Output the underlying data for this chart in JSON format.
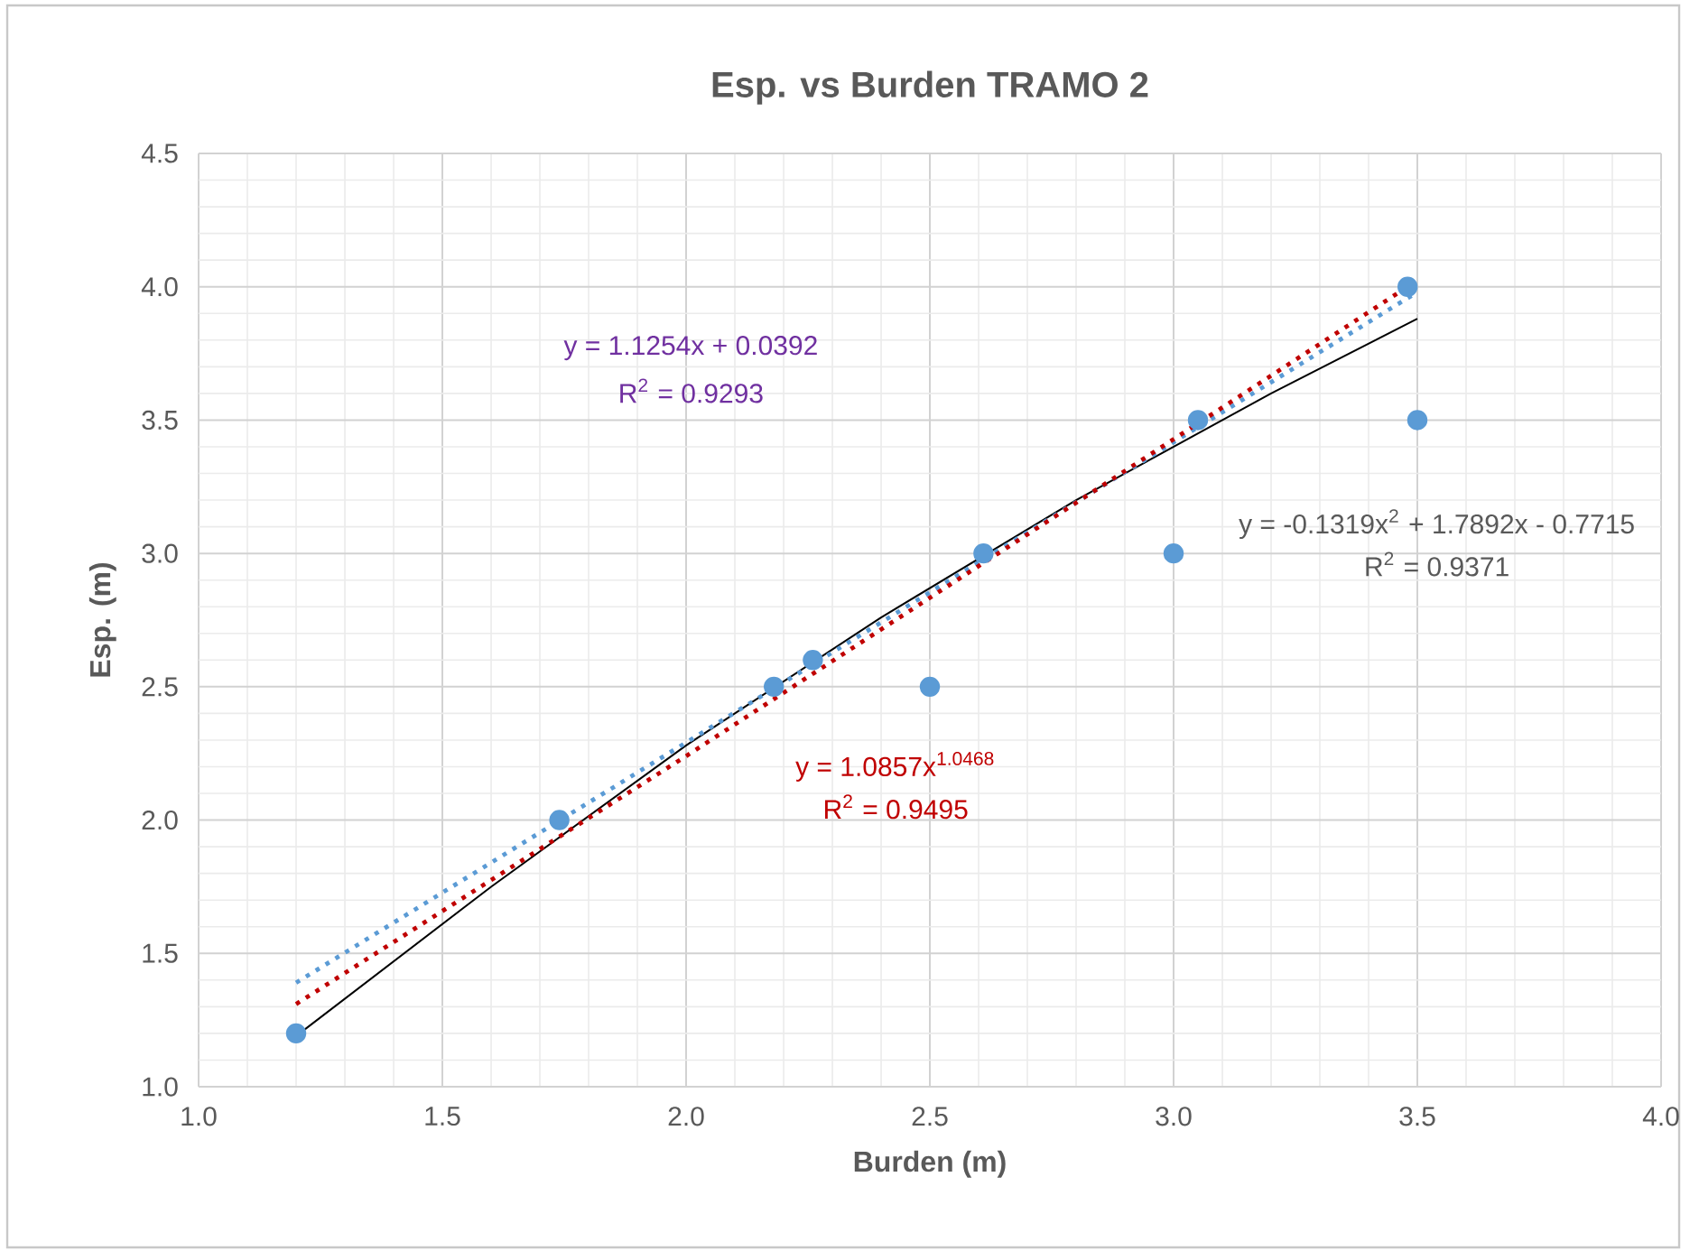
{
  "chart_data": {
    "type": "scatter",
    "title": "Esp. vs Burden TRAMO 2",
    "xlabel": "Burden (m)",
    "ylabel": "Esp. (m)",
    "xlim": [
      1.0,
      4.0
    ],
    "ylim": [
      1.0,
      4.5
    ],
    "xticks": [
      {
        "value": 1.0,
        "label": "1.0"
      },
      {
        "value": 1.5,
        "label": "1.5"
      },
      {
        "value": 2.0,
        "label": "2.0"
      },
      {
        "value": 2.5,
        "label": "2.5"
      },
      {
        "value": 3.0,
        "label": "3.0"
      },
      {
        "value": 3.5,
        "label": "3.5"
      },
      {
        "value": 4.0,
        "label": "4.0"
      }
    ],
    "yticks": [
      {
        "value": 1.0,
        "label": "1.0"
      },
      {
        "value": 1.5,
        "label": "1.5"
      },
      {
        "value": 2.0,
        "label": "2.0"
      },
      {
        "value": 2.5,
        "label": "2.5"
      },
      {
        "value": 3.0,
        "label": "3.0"
      },
      {
        "value": 3.5,
        "label": "3.5"
      },
      {
        "value": 4.0,
        "label": "4.0"
      },
      {
        "value": 4.5,
        "label": "4.5"
      }
    ],
    "grid": true,
    "series": [
      {
        "color": "#5b9bd5",
        "marker": "circle",
        "x": [
          1.2,
          1.74,
          2.18,
          2.26,
          2.5,
          2.61,
          3.0,
          3.05,
          3.48,
          3.5
        ],
        "values": [
          1.2,
          2.0,
          2.5,
          2.6,
          2.5,
          3.0,
          3.0,
          3.5,
          4.0,
          3.5
        ]
      },
      {
        "type": "line",
        "color": "#000000",
        "line_style": "solid",
        "marker": "none",
        "x": [
          1.2,
          1.6,
          2.0,
          2.4,
          2.8,
          3.2,
          3.5
        ],
        "values": [
          1.19,
          1.75,
          2.28,
          2.76,
          3.2,
          3.6,
          3.88
        ]
      },
      {
        "type": "line",
        "color": "#5b9bd5",
        "line_style": "dotted",
        "marker": "none",
        "x": [
          1.2,
          3.5
        ],
        "values": [
          1.39,
          3.98
        ]
      },
      {
        "type": "line",
        "color": "#c00000",
        "line_style": "dotted",
        "marker": "none",
        "x": [
          1.2,
          2.0,
          2.8,
          3.48
        ],
        "values": [
          1.31,
          2.24,
          3.19,
          4.0
        ]
      }
    ],
    "annotations": [
      "y = 1.1254x + 0.0392",
      "R$^{2}$ = 0.9293",
      "y = 1.0857x$^{1.0468}$",
      "R$^{2}$ = 0.9495",
      "y = -0.1319x$^{2}$ + 1.7892x - 0.7715",
      "R$^{2}$ = 0.9371"
    ]
  }
}
